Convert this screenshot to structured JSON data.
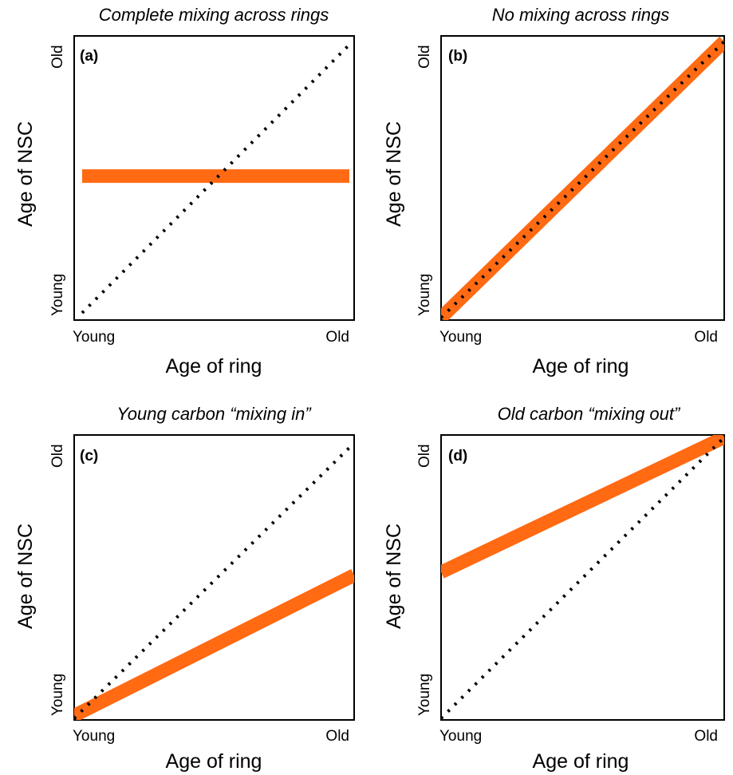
{
  "chart_data": [
    {
      "type": "line",
      "panel": "(a)",
      "title": "Complete mixing across rings",
      "xlabel": "Age of ring",
      "ylabel": "Age of NSC",
      "x_ticks": [
        "Young",
        "Old"
      ],
      "y_ticks": [
        "Young",
        "Old"
      ],
      "xlim": [
        0,
        1
      ],
      "ylim": [
        0,
        1
      ],
      "series": [
        {
          "style": "dotted",
          "color": "#000000",
          "x": [
            0,
            1
          ],
          "y": [
            0,
            1
          ]
        },
        {
          "style": "thick",
          "color": "#FF6A13",
          "x": [
            0,
            1
          ],
          "y": [
            0.51,
            0.51
          ]
        }
      ]
    },
    {
      "type": "line",
      "panel": "(b)",
      "title": "No mixing across rings",
      "xlabel": "Age of ring",
      "ylabel": "Age of NSC",
      "x_ticks": [
        "Young",
        "Old"
      ],
      "y_ticks": [
        "Young",
        "Old"
      ],
      "xlim": [
        0,
        1
      ],
      "ylim": [
        0,
        1
      ],
      "series": [
        {
          "style": "dotted",
          "color": "#000000",
          "x": [
            0,
            1
          ],
          "y": [
            0,
            1
          ]
        },
        {
          "style": "thick",
          "color": "#FF6A13",
          "x": [
            0,
            1
          ],
          "y": [
            0,
            1
          ]
        }
      ]
    },
    {
      "type": "line",
      "panel": "(c)",
      "title": "Young carbon “mixing in”",
      "xlabel": "Age of ring",
      "ylabel": "Age of NSC",
      "x_ticks": [
        "Young",
        "Old"
      ],
      "y_ticks": [
        "Young",
        "Old"
      ],
      "xlim": [
        0,
        1
      ],
      "ylim": [
        0,
        1
      ],
      "series": [
        {
          "style": "dotted",
          "color": "#000000",
          "x": [
            0,
            1
          ],
          "y": [
            0,
            1
          ]
        },
        {
          "style": "thick",
          "color": "#FF6A13",
          "x": [
            0,
            1
          ],
          "y": [
            0.01,
            0.52
          ]
        }
      ]
    },
    {
      "type": "line",
      "panel": "(d)",
      "title": "Old carbon “mixing out”",
      "xlabel": "Age of ring",
      "ylabel": "Age of NSC",
      "x_ticks": [
        "Young",
        "Old"
      ],
      "y_ticks": [
        "Young",
        "Old"
      ],
      "xlim": [
        0,
        1
      ],
      "ylim": [
        0,
        1
      ],
      "series": [
        {
          "style": "dotted",
          "color": "#000000",
          "x": [
            0,
            1
          ],
          "y": [
            0,
            1
          ]
        },
        {
          "style": "thick",
          "color": "#FF6A13",
          "x": [
            0,
            1
          ],
          "y": [
            0.52,
            1.0
          ]
        }
      ]
    }
  ]
}
